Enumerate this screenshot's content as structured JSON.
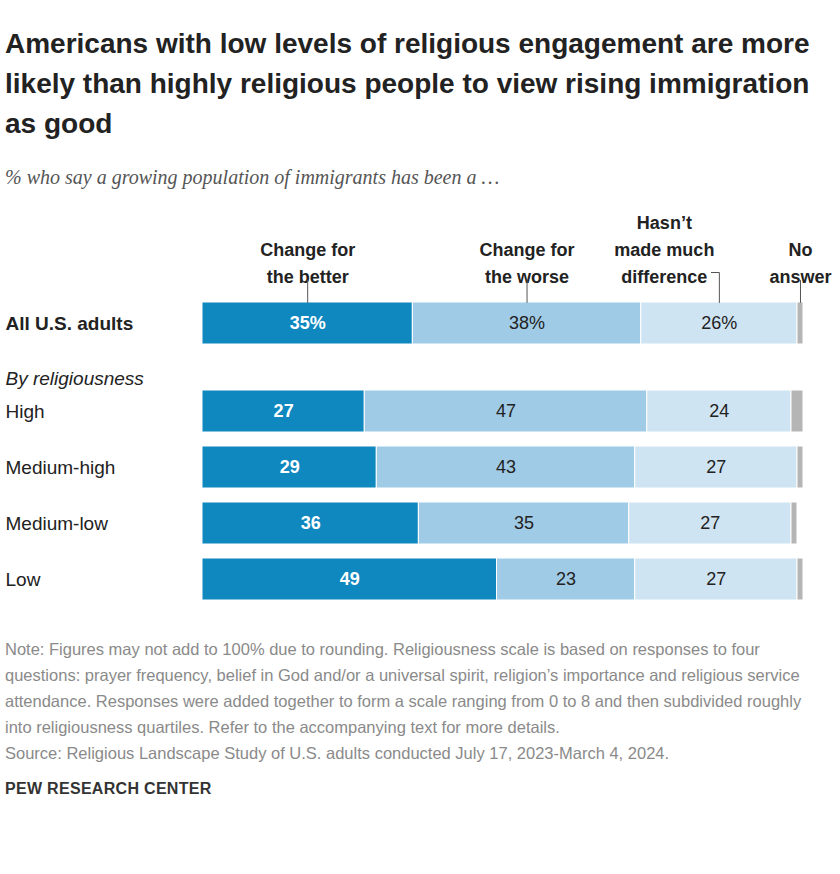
{
  "chart_data": {
    "type": "bar",
    "orientation": "horizontal",
    "stacked": true,
    "data_labels": true,
    "tick_labels": "y",
    "title": "Americans with low levels of religious engagement are more likely than highly religious people to view rising immigration as good",
    "subtitle": "% who say a growing population of immigrants has been a …",
    "group_label": "By religiousness",
    "categories": [
      "All U.S. adults",
      "High",
      "Medium-high",
      "Medium-low",
      "Low"
    ],
    "series": [
      {
        "name": "Change for the better",
        "color": "#0f87bf",
        "values": [
          35,
          27,
          29,
          36,
          49
        ],
        "value_labels": [
          "35%",
          "27",
          "29",
          "36",
          "49"
        ]
      },
      {
        "name": "Change for the worse",
        "color": "#a0cbe6",
        "values": [
          38,
          47,
          43,
          35,
          23
        ],
        "value_labels": [
          "38%",
          "47",
          "43",
          "35",
          "23"
        ]
      },
      {
        "name": "Hasn’t made much difference",
        "color": "#cfe4f2",
        "values": [
          26,
          24,
          27,
          27,
          27
        ],
        "value_labels": [
          "26%",
          "24",
          "27",
          "27",
          "27"
        ]
      },
      {
        "name": "No answer",
        "color": "#b5b5b5",
        "values": [
          1,
          2,
          1,
          1,
          1
        ],
        "data_labels": false
      }
    ],
    "note": "Note: Figures may not add to 100% due to rounding. Religiousness scale is based on responses to four questions: prayer frequency, belief in God and/or a universal spirit, religion’s importance and religious service attendance. Responses were added together to form a scale ranging from 0 to 8 and then subdivided roughly into religiousness quartiles. Refer to the accompanying text for more details.",
    "source": "Source: Religious Landscape Study of U.S. adults conducted July 17, 2023-March 4, 2024.",
    "credit": "PEW RESEARCH CENTER"
  }
}
